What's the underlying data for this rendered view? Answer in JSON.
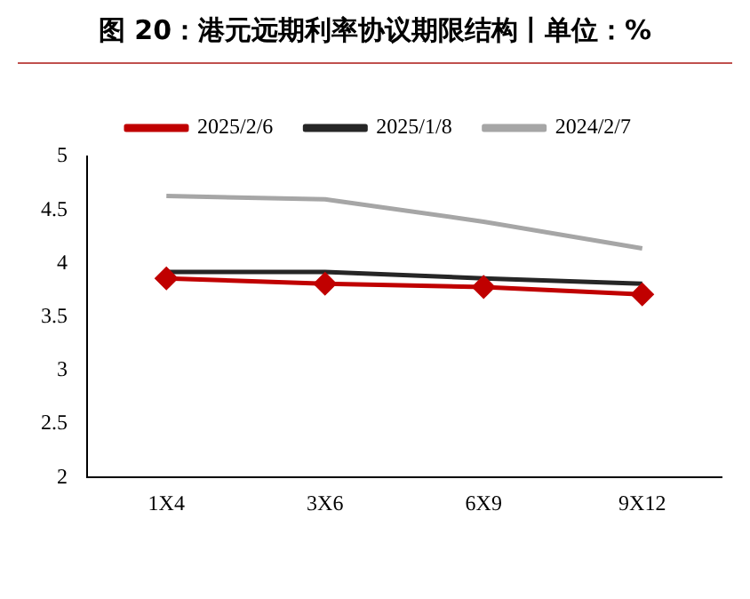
{
  "chart_data": {
    "type": "line",
    "title": "图 20：港元远期利率协议期限结构丨单位：%",
    "categories": [
      "1X4",
      "3X6",
      "6X9",
      "9X12"
    ],
    "series": [
      {
        "name": "2025/2/6",
        "color": "#c00000",
        "marker": "diamond",
        "values": [
          3.86,
          3.81,
          3.78,
          3.71
        ]
      },
      {
        "name": "2025/1/8",
        "color": "#262626",
        "marker": "none",
        "values": [
          3.92,
          3.92,
          3.86,
          3.81
        ]
      },
      {
        "name": "2024/2/7",
        "color": "#a6a6a6",
        "marker": "none",
        "values": [
          4.63,
          4.6,
          4.39,
          4.14
        ]
      }
    ],
    "ylim": [
      2,
      5
    ],
    "yticks": [
      2,
      2.5,
      3,
      3.5,
      4,
      4.5,
      5
    ],
    "grid": false,
    "legend": "top",
    "line_style": "solid"
  }
}
